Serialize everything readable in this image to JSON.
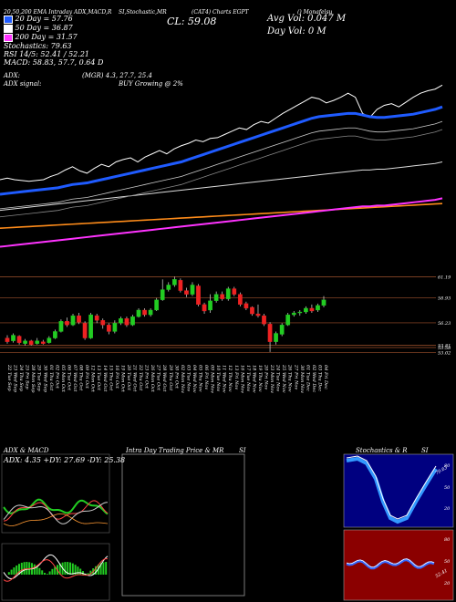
{
  "header": {
    "title_left": "20,50,200 EMA Intraday ADX,MACD,R",
    "title_mid": "SI,Stochastic,MR",
    "title_right": "(CAT4) Charts EGPT",
    "title_far": "() Monafelsu",
    "close_label": "CL: 59.08",
    "avg_vol": "Avg Vol: 0.047 M",
    "day_vol": "Day Vol: 0   M"
  },
  "legend": {
    "ema20": "20   Day = 57.76",
    "ema50": "50   Day = 36.87",
    "ema200": "200   Day = 31.57",
    "stochastics": "Stochastics: 79.63",
    "rsi": "RSI 14/5: 52.41 / 52.21",
    "macd": "MACD: 58.83, 57.7, 0.64 D"
  },
  "adx_info": {
    "line1_left": "ADX:",
    "line1_right": "(MGR) 4.3, 27.7, 25.4",
    "line2_left": "ADX  signal:",
    "line2_right": "BUY Growing @ 2%"
  },
  "colors": {
    "ema20": "#1f5bff",
    "ema50": "#ff8c1a",
    "ema200": "#ff33ff",
    "price": "#ffffff",
    "up": "#22cc22",
    "down": "#ee2222",
    "stoch_bg": "#000080",
    "rsi_bg": "#8b0000"
  },
  "chart_data": [
    {
      "type": "line",
      "title": "",
      "series": [
        {
          "name": "Price",
          "values": [
            88,
            90,
            88,
            87,
            86,
            87,
            88,
            92,
            95,
            100,
            104,
            99,
            96,
            102,
            107,
            104,
            110,
            113,
            115,
            110,
            116,
            120,
            124,
            120,
            126,
            130,
            133,
            137,
            135,
            139,
            140,
            144,
            148,
            152,
            150,
            156,
            160,
            158,
            164,
            170,
            175,
            180,
            185,
            190,
            188,
            183,
            186,
            190,
            195,
            190,
            170,
            165,
            175,
            180,
            182,
            178,
            184,
            190,
            195,
            198,
            200,
            205
          ]
        },
        {
          "name": "EMA 20",
          "values": [
            70,
            71,
            72,
            73,
            74,
            75,
            76,
            77,
            78,
            80,
            82,
            83,
            84,
            86,
            88,
            90,
            92,
            94,
            96,
            98,
            100,
            102,
            104,
            106,
            108,
            110,
            113,
            116,
            119,
            122,
            125,
            128,
            131,
            134,
            137,
            140,
            143,
            146,
            149,
            152,
            155,
            158,
            161,
            164,
            166,
            167,
            168,
            169,
            170,
            170,
            168,
            166,
            165,
            165,
            166,
            167,
            168,
            169,
            171,
            173,
            175,
            178
          ]
        },
        {
          "name": "EMA 50",
          "values": [
            50,
            51,
            52,
            53,
            54,
            55,
            56,
            57,
            58,
            59,
            60,
            61,
            62,
            63,
            64,
            65,
            66,
            67,
            68,
            69,
            70,
            71,
            72,
            73,
            74,
            75,
            76,
            77,
            78,
            79,
            80,
            81,
            82,
            83,
            84,
            85,
            86,
            87,
            88,
            89,
            90,
            91,
            92,
            93,
            94,
            95,
            96,
            97,
            98,
            99,
            100,
            100,
            101,
            101,
            102,
            103,
            104,
            105,
            106,
            107,
            108,
            110
          ]
        },
        {
          "name": "EMA 200",
          "values": [
            28,
            28.5,
            29,
            29.5,
            30,
            30.5,
            31,
            31.5,
            32,
            32.5,
            33,
            33.5,
            34,
            34.5,
            35,
            35.5,
            36,
            36.5,
            37,
            37.5,
            38,
            38.5,
            39,
            39.5,
            40,
            40.5,
            41,
            41.5,
            42,
            42.5,
            43,
            43.5,
            44,
            44.5,
            45,
            45.5,
            46,
            46.5,
            47,
            47.5,
            48,
            48.5,
            49,
            49.5,
            50,
            50.5,
            51,
            51.5,
            52,
            52.5,
            53,
            53.5,
            54,
            54.5,
            55,
            55.5,
            56,
            56.5,
            57,
            57.5,
            58,
            58.5
          ]
        }
      ]
    },
    {
      "type": "candlestick",
      "title": "",
      "yticks": [
        "61.19",
        "58.93",
        "56.23",
        "53.81",
        "53.58",
        "53.02"
      ],
      "ylim": [
        52.5,
        62.5
      ],
      "x_labels": [
        "22 Tue Sep",
        "23 Wed Sep",
        "24 Thu Sep",
        "25 Fri Sep",
        "28 Mon Sep",
        "29 Tue Sep",
        "30 Wed Sep",
        "01 Thu Oct",
        "02 Fri Oct",
        "05 Mon Oct",
        "06 Tue Oct",
        "07 Wed Oct",
        "08 Thu Oct",
        "09 Fri Oct",
        "12 Mon Oct",
        "13 Tue Oct",
        "14 Wed Oct",
        "15 Thu Oct",
        "16 Fri Oct",
        "19 Mon Oct",
        "20 Tue Oct",
        "21 Wed Oct",
        "22 Thu Oct",
        "23 Fri Oct",
        "26 Mon Oct",
        "27 Tue Oct",
        "28 Wed Oct",
        "29 Thu Oct",
        "30 Fri Oct",
        "02 Mon Nov",
        "03 Tue Nov",
        "04 Wed Nov",
        "05 Thu Nov",
        "06 Fri Nov",
        "09 Mon Nov",
        "10 Tue Nov",
        "11 Wed Nov",
        "12 Thu Nov",
        "13 Fri Nov",
        "16 Mon Nov",
        "17 Tue Nov",
        "18 Wed Nov",
        "19 Thu Nov",
        "20 Fri Nov",
        "23 Mon Nov",
        "24 Tue Nov",
        "25 Wed Nov",
        "26 Thu Nov",
        "27 Fri Nov",
        "30 Mon Nov",
        "01 Tue Dec",
        "02 Wed Dec",
        "03 Thu Dec",
        "04 Fri Dec"
      ],
      "candles": [
        [
          54.6,
          54.2,
          54.9,
          54.0
        ],
        [
          54.3,
          54.9,
          55.1,
          54.1
        ],
        [
          54.8,
          54.1,
          54.9,
          53.9
        ],
        [
          54.0,
          54.3,
          54.5,
          53.8
        ],
        [
          54.3,
          53.9,
          54.4,
          53.8
        ],
        [
          54.0,
          54.3,
          54.6,
          53.9
        ],
        [
          54.2,
          54.0,
          54.4,
          53.9
        ],
        [
          54.1,
          54.6,
          54.8,
          54.0
        ],
        [
          54.6,
          55.3,
          55.5,
          54.5
        ],
        [
          55.3,
          56.4,
          56.6,
          55.2
        ],
        [
          56.4,
          56.0,
          56.8,
          55.8
        ],
        [
          56.0,
          57.0,
          57.2,
          55.9
        ],
        [
          57.0,
          56.3,
          57.3,
          56.1
        ],
        [
          56.2,
          54.6,
          56.4,
          54.4
        ],
        [
          54.6,
          57.1,
          57.3,
          54.5
        ],
        [
          57.0,
          56.5,
          57.2,
          56.2
        ],
        [
          56.5,
          56.0,
          56.7,
          55.6
        ],
        [
          56.0,
          55.3,
          56.2,
          55.0
        ],
        [
          55.3,
          56.2,
          56.5,
          55.1
        ],
        [
          56.2,
          56.7,
          56.9,
          56.0
        ],
        [
          56.7,
          56.0,
          56.9,
          55.8
        ],
        [
          56.0,
          56.9,
          57.1,
          55.9
        ],
        [
          56.9,
          57.6,
          57.8,
          56.8
        ],
        [
          57.6,
          57.1,
          57.8,
          56.9
        ],
        [
          57.1,
          57.6,
          57.8,
          56.9
        ],
        [
          57.6,
          58.7,
          58.9,
          57.5
        ],
        [
          58.7,
          59.8,
          60.9,
          58.6
        ],
        [
          59.8,
          60.3,
          60.6,
          59.6
        ],
        [
          60.3,
          60.9,
          61.2,
          60.1
        ],
        [
          60.8,
          59.7,
          61.0,
          59.5
        ],
        [
          59.7,
          59.3,
          60.0,
          59.0
        ],
        [
          59.3,
          60.3,
          60.6,
          59.1
        ],
        [
          60.2,
          58.2,
          60.4,
          58.0
        ],
        [
          58.2,
          57.5,
          58.4,
          57.2
        ],
        [
          57.6,
          58.6,
          59.3,
          57.3
        ],
        [
          58.6,
          59.3,
          59.6,
          58.4
        ],
        [
          59.3,
          58.8,
          59.6,
          58.6
        ],
        [
          58.8,
          59.9,
          60.1,
          58.6
        ],
        [
          59.9,
          59.3,
          60.1,
          59.1
        ],
        [
          59.3,
          58.2,
          59.5,
          58.0
        ],
        [
          58.3,
          57.8,
          58.5,
          57.6
        ],
        [
          57.9,
          57.2,
          58.0,
          57.0
        ],
        [
          57.2,
          57.0,
          58.2,
          56.8
        ],
        [
          57.0,
          56.1,
          57.2,
          55.9
        ],
        [
          56.1,
          54.2,
          56.3,
          53.1
        ],
        [
          54.2,
          55.1,
          55.3,
          53.9
        ],
        [
          55.0,
          56.0,
          56.2,
          54.8
        ],
        [
          56.0,
          57.1,
          57.3,
          55.9
        ],
        [
          57.1,
          57.3,
          57.5,
          56.9
        ],
        [
          57.3,
          57.4,
          57.6,
          57.0
        ],
        [
          57.4,
          57.8,
          58.0,
          57.2
        ],
        [
          57.8,
          57.5,
          58.2,
          57.3
        ],
        [
          57.6,
          58.1,
          58.3,
          57.4
        ],
        [
          58.1,
          58.7,
          59.1,
          57.9
        ]
      ]
    }
  ],
  "panels": {
    "adx_title": "ADX  & MACD",
    "adx_values": "ADX: 4.35  +DY: 27.69  -DY: 25.38",
    "intraday_title": "Intra  Day Trading Price  & MR",
    "intraday_si": "SI",
    "stoch_title": "Stochastics & R",
    "stoch_si": "SI",
    "stoch_ticks": [
      "80",
      "50",
      "20"
    ],
    "stoch_value_label": "79.63",
    "rsi_ticks": [
      "80",
      "50",
      "20"
    ],
    "rsi_value_label": "52.41"
  }
}
